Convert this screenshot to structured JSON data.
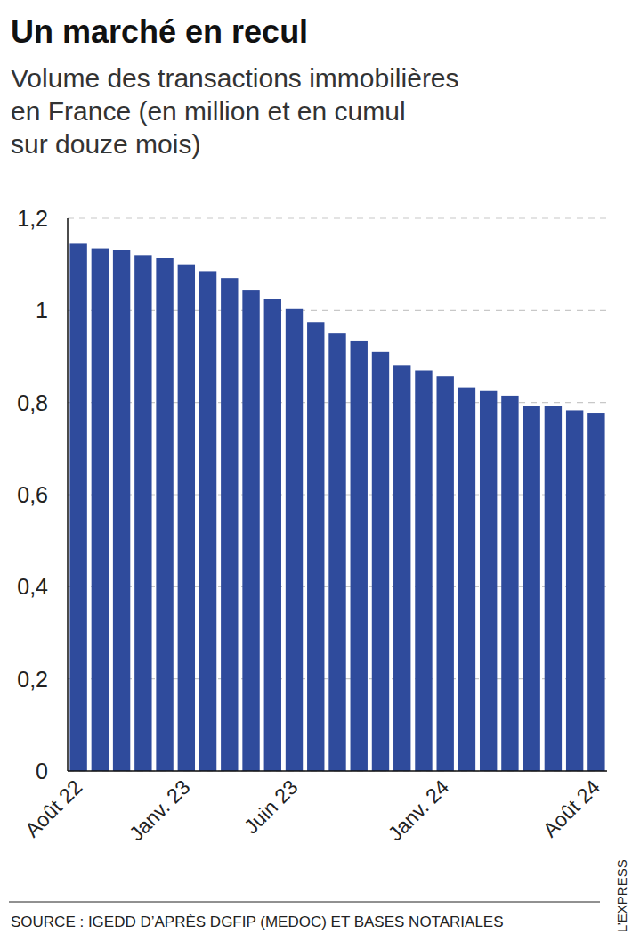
{
  "chart_data": {
    "type": "bar",
    "title": "Un marché en recul",
    "subtitle": [
      "Volume des transactions immobilières",
      "en France (en million et en cumul",
      "sur douze mois)"
    ],
    "source": "SOURCE : IGEDD D’APRÈS DGFIP (MEDOC) ET BASES NOTARIALES",
    "credit": "L’EXPRESS",
    "categories": [
      "Août 22",
      null,
      null,
      null,
      null,
      "Janv. 23",
      null,
      null,
      null,
      null,
      "Juin 23",
      null,
      null,
      null,
      null,
      null,
      null,
      "Janv. 24",
      null,
      null,
      null,
      null,
      null,
      null,
      "Août 24"
    ],
    "values": [
      1.145,
      1.135,
      1.132,
      1.12,
      1.113,
      1.1,
      1.085,
      1.07,
      1.045,
      1.025,
      1.003,
      0.975,
      0.95,
      0.933,
      0.91,
      0.88,
      0.87,
      0.857,
      0.833,
      0.825,
      0.815,
      0.793,
      0.792,
      0.783,
      0.778
    ],
    "color": "#2f4b9c",
    "ylim": [
      0,
      1.2
    ],
    "yticks": [
      0,
      {
        "value": 0.2,
        "label": "0,2"
      },
      {
        "value": 0.4,
        "label": "0,4"
      },
      {
        "value": 0.6,
        "label": "0,6"
      },
      {
        "value": 0.8,
        "label": "0,8"
      },
      1,
      {
        "value": 1.2,
        "label": "1,2"
      }
    ],
    "grid": true,
    "data_labels": false
  }
}
